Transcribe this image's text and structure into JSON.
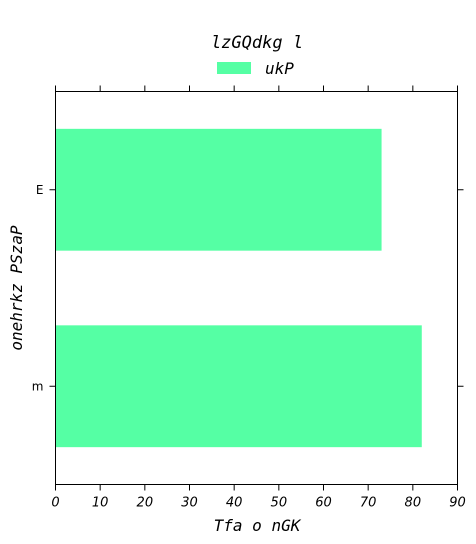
{
  "chart_data": {
    "type": "bar",
    "orientation": "horizontal",
    "title": "lzGQdkg l",
    "xlabel": "Tfa o  nGK",
    "ylabel": "onehrkz PSzaP",
    "categories": [
      "m",
      "E"
    ],
    "series": [
      {
        "name": "ukP",
        "values": [
          82,
          73
        ],
        "color": "#55ffa4"
      }
    ],
    "xlim": [
      0,
      90
    ],
    "xticks": [
      "0",
      "10",
      "20",
      "30",
      "40",
      "50",
      "60",
      "70",
      "80",
      "90"
    ],
    "grid": false,
    "legend_position": "top-center"
  }
}
